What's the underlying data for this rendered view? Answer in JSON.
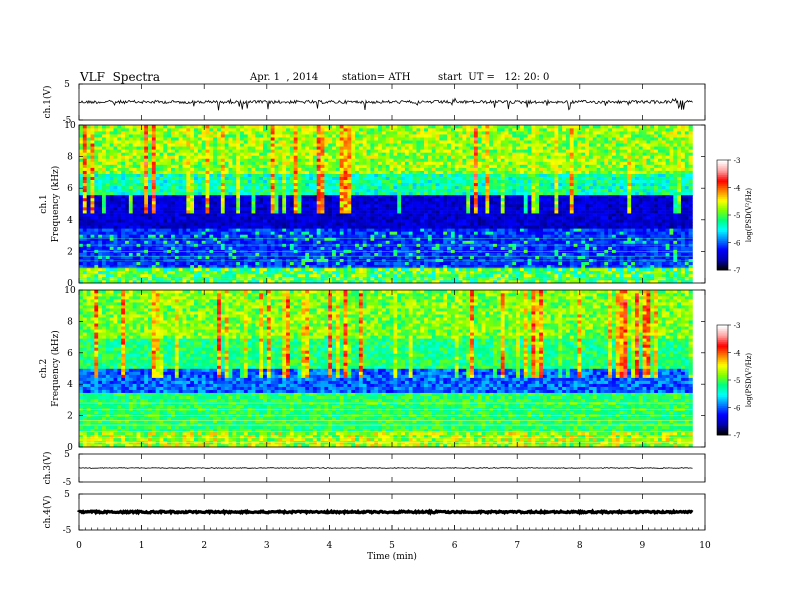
{
  "header": {
    "title": "VLF  Spectra",
    "date": "Apr. 1  , 2014",
    "station": "station= ATH",
    "start": "start  UT =   12: 20: 0"
  },
  "chart_data": [
    {
      "type": "line",
      "panel": "ch1-waveform",
      "ylabel": "ch.1(V)",
      "yticks": [
        "5",
        "-5"
      ],
      "ylim": [
        -5,
        5
      ],
      "approx_level": 0,
      "xlim": [
        0,
        9.8
      ]
    },
    {
      "type": "heatmap",
      "panel": "ch1-spectrogram",
      "ylabel": "Frequency  (kHz)",
      "channel_label": "ch.1",
      "yticks": [
        "0",
        "2",
        "4",
        "6",
        "8",
        "10"
      ],
      "ylim": [
        0,
        10
      ],
      "xlim": [
        0,
        9.8
      ],
      "colorbar": {
        "label": "log(PSD(V²/Hz)",
        "ticks": [
          "-3",
          "-4",
          "-5",
          "-6",
          "-7"
        ],
        "range": [
          -7,
          -3
        ]
      }
    },
    {
      "type": "heatmap",
      "panel": "ch2-spectrogram",
      "ylabel": "Frequency  (kHz)",
      "channel_label": "ch.2",
      "yticks": [
        "0",
        "2",
        "4",
        "6",
        "8",
        "10"
      ],
      "ylim": [
        0,
        10
      ],
      "xlim": [
        0,
        9.8
      ],
      "colorbar": {
        "label": "log(PSD(V²/Hz)",
        "ticks": [
          "-3",
          "-4",
          "-5",
          "-6",
          "-7"
        ],
        "range": [
          -7,
          -3
        ]
      }
    },
    {
      "type": "line",
      "panel": "ch3-waveform",
      "ylabel": "ch.3(V)",
      "yticks": [
        "5",
        "-5"
      ],
      "ylim": [
        -5,
        5
      ],
      "approx_level": 0,
      "xlim": [
        0,
        9.8
      ]
    },
    {
      "type": "line",
      "panel": "ch4-waveform",
      "ylabel": "ch.4(V)",
      "yticks": [
        "5",
        "-5"
      ],
      "ylim": [
        -5,
        5
      ],
      "approx_level": 0,
      "xlim": [
        0,
        9.8
      ]
    }
  ],
  "xaxis": {
    "label": "Time  (min)",
    "ticks": [
      "0",
      "1",
      "2",
      "3",
      "4",
      "5",
      "6",
      "7",
      "8",
      "9",
      "10"
    ],
    "range": [
      0,
      10
    ]
  },
  "colors": {
    "waveform": "#000000",
    "colormap": [
      "#000000",
      "#0000b0",
      "#0000ff",
      "#0080ff",
      "#00ffff",
      "#00ff80",
      "#80ff00",
      "#ffff00",
      "#ff8000",
      "#ff0000",
      "#ffa0a0",
      "#ffffff"
    ]
  }
}
